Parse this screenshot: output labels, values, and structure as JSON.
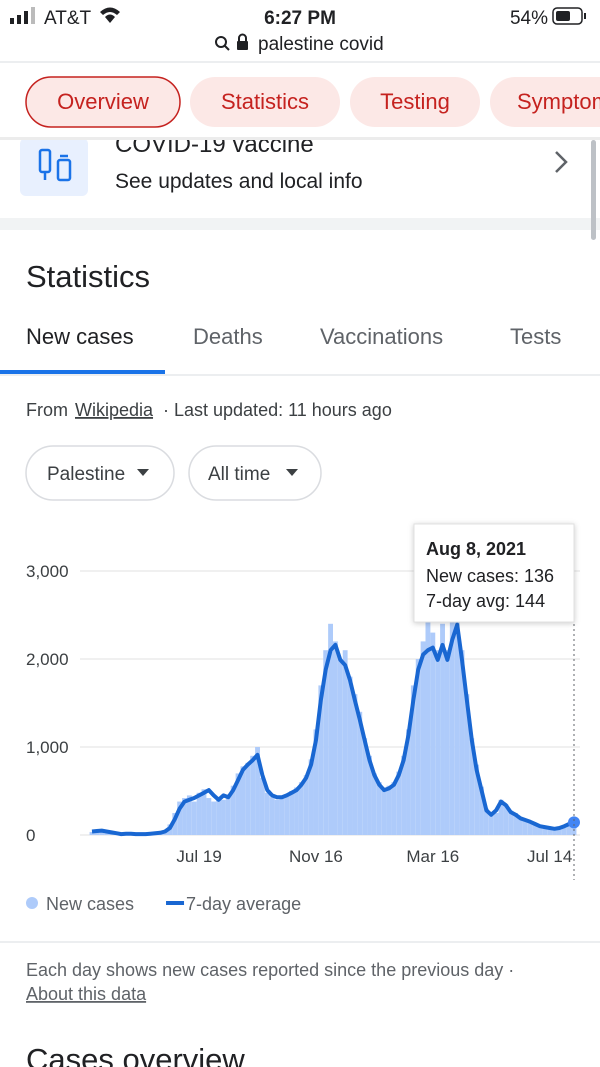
{
  "status_bar": {
    "carrier": "AT&T",
    "time": "6:27 PM",
    "battery": "54%"
  },
  "address_bar": {
    "query": "palestine covid"
  },
  "tabs": [
    "Overview",
    "Statistics",
    "Testing",
    "Symptoms"
  ],
  "vaccine_card": {
    "title": "COVID-19 vaccine",
    "subtitle": "See updates and local info"
  },
  "statistics": {
    "heading": "Statistics",
    "tabs": [
      "New cases",
      "Deaths",
      "Vaccinations",
      "Tests"
    ],
    "source": {
      "prefix": "From",
      "link": "Wikipedia",
      "suffix": "· Last updated: 11 hours ago"
    },
    "filters": [
      "Palestine",
      "All time"
    ]
  },
  "chart_data": {
    "type": "combo",
    "categories": [
      null,
      null,
      null,
      null,
      null,
      null,
      null,
      null,
      null,
      null,
      null,
      null,
      null,
      null,
      null,
      null,
      null,
      null,
      null,
      null,
      null,
      null,
      "Jul 19",
      null,
      null,
      null,
      null,
      null,
      null,
      null,
      null,
      null,
      null,
      null,
      null,
      null,
      null,
      null,
      null,
      null,
      null,
      null,
      null,
      null,
      null,
      null,
      "Nov 16",
      null,
      null,
      null,
      null,
      null,
      null,
      null,
      null,
      null,
      null,
      null,
      null,
      null,
      null,
      null,
      null,
      null,
      null,
      null,
      null,
      null,
      null,
      null,
      "Mar 16",
      null,
      null,
      null,
      null,
      null,
      null,
      null,
      null,
      null,
      null,
      null,
      null,
      null,
      null,
      null,
      null,
      null,
      null,
      null,
      null,
      null,
      null,
      null,
      "Jul 14",
      null,
      null,
      null,
      null,
      null
    ],
    "series": [
      {
        "name": "New cases",
        "type": "bar",
        "color": "#aecbfa",
        "values": [
          35,
          50,
          60,
          30,
          25,
          15,
          5,
          20,
          10,
          5,
          5,
          15,
          10,
          25,
          30,
          50,
          120,
          250,
          380,
          420,
          450,
          380,
          480,
          520,
          420,
          380,
          430,
          400,
          460,
          560,
          700,
          780,
          820,
          900,
          1000,
          650,
          480,
          430,
          400,
          420,
          460,
          500,
          540,
          600,
          680,
          860,
          1200,
          1700,
          2100,
          2400,
          2200,
          2000,
          2100,
          1800,
          1600,
          1400,
          1100,
          900,
          700,
          600,
          500,
          560,
          600,
          720,
          900,
          1200,
          1700,
          2000,
          2200,
          2600,
          2300,
          2100,
          2400,
          2100,
          2500,
          2700,
          2100,
          1600,
          1100,
          800,
          550,
          300,
          250,
          250,
          400,
          350,
          280,
          250,
          200,
          180,
          160,
          130,
          110,
          100,
          90,
          70,
          90,
          110,
          130,
          136
        ]
      },
      {
        "name": "7-day average",
        "type": "line",
        "color": "#1967d2",
        "values": [
          40,
          45,
          50,
          40,
          30,
          20,
          10,
          15,
          15,
          10,
          10,
          10,
          15,
          20,
          25,
          40,
          80,
          180,
          300,
          380,
          400,
          420,
          450,
          480,
          510,
          450,
          400,
          450,
          430,
          510,
          625,
          740,
          800,
          850,
          910,
          680,
          510,
          450,
          430,
          430,
          450,
          480,
          510,
          570,
          650,
          800,
          1080,
          1530,
          1880,
          2100,
          2160,
          1990,
          1930,
          1760,
          1530,
          1310,
          1080,
          850,
          680,
          570,
          510,
          530,
          570,
          680,
          850,
          1140,
          1530,
          1880,
          2050,
          2100,
          2130,
          1990,
          2160,
          1990,
          2220,
          2390,
          1990,
          1530,
          1080,
          740,
          510,
          280,
          230,
          280,
          380,
          340,
          260,
          230,
          190,
          170,
          150,
          125,
          100,
          90,
          80,
          70,
          80,
          100,
          125,
          144
        ]
      }
    ],
    "ylim": [
      0,
      3000
    ],
    "yticks": [
      0,
      {
        "value": 1000,
        "label": "1,000"
      },
      {
        "value": 2000,
        "label": "2,000"
      },
      {
        "value": 3000,
        "label": "3,000"
      }
    ],
    "grid": true,
    "tooltip": {
      "title": "Aug 8, 2021",
      "lines": [
        "New cases: 136",
        "7-day avg: 144"
      ]
    }
  },
  "footer": {
    "note": "Each day shows new cases reported since the previous day ·",
    "link": "About this data"
  },
  "next_section": "Cases overview"
}
